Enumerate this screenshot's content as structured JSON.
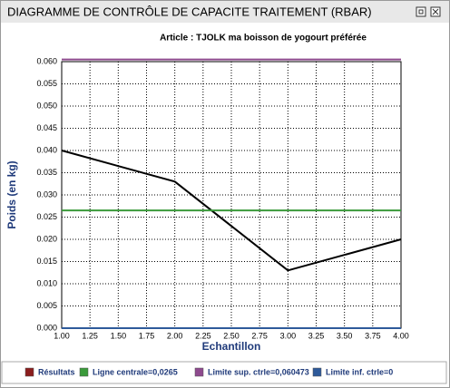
{
  "window_title": "DIAGRAMME DE CONTRÔLE DE CAPACITE TRAITEMENT (RBAR)",
  "chart_data": {
    "type": "line",
    "title": "Article : TJOLK ma boisson de yogourt préférée",
    "x_label": "Echantillon",
    "y_label": "Poids (en kg)",
    "x": [
      1,
      2,
      3,
      4
    ],
    "series": [
      {
        "name": "Résultats",
        "color": "#8b1e1e",
        "line_color": "#000000",
        "values": [
          0.04,
          0.033,
          0.013,
          0.02
        ]
      },
      {
        "name": "Ligne centrale=0,0265",
        "color": "#3a9a3a",
        "values": [
          0.0265,
          0.0265,
          0.0265,
          0.0265
        ]
      },
      {
        "name": "Limite sup. ctrle=0,060473",
        "color": "#8e4a8e",
        "values": [
          0.060473,
          0.060473,
          0.060473,
          0.060473
        ]
      },
      {
        "name": "Limite inf. ctrle=0",
        "color": "#2e5a9a",
        "values": [
          0,
          0,
          0,
          0
        ]
      }
    ],
    "xlim": [
      1,
      4
    ],
    "xticks": [
      {
        "value": 1,
        "label": "1.00"
      },
      {
        "value": 1.25,
        "label": "1.25"
      },
      {
        "value": 1.5,
        "label": "1.50"
      },
      {
        "value": 1.75,
        "label": "1.75"
      },
      {
        "value": 2,
        "label": "2.00"
      },
      {
        "value": 2.25,
        "label": "2.25"
      },
      {
        "value": 2.5,
        "label": "2.50"
      },
      {
        "value": 2.75,
        "label": "2.75"
      },
      {
        "value": 3,
        "label": "3.00"
      },
      {
        "value": 3.25,
        "label": "3.25"
      },
      {
        "value": 3.5,
        "label": "3.50"
      },
      {
        "value": 3.75,
        "label": "3.75"
      },
      {
        "value": 4,
        "label": "4.00"
      }
    ],
    "ylim": [
      0,
      0.06
    ],
    "yticks": [
      {
        "value": 0,
        "label": "0.000"
      },
      {
        "value": 0.005,
        "label": "0.005"
      },
      {
        "value": 0.01,
        "label": "0.010"
      },
      {
        "value": 0.015,
        "label": "0.015"
      },
      {
        "value": 0.02,
        "label": "0.020"
      },
      {
        "value": 0.025,
        "label": "0.025"
      },
      {
        "value": 0.03,
        "label": "0.030"
      },
      {
        "value": 0.035,
        "label": "0.035"
      },
      {
        "value": 0.04,
        "label": "0.040"
      },
      {
        "value": 0.045,
        "label": "0.045"
      },
      {
        "value": 0.05,
        "label": "0.050"
      },
      {
        "value": 0.055,
        "label": "0.055"
      },
      {
        "value": 0.06,
        "label": "0.060"
      }
    ],
    "grid": true
  }
}
